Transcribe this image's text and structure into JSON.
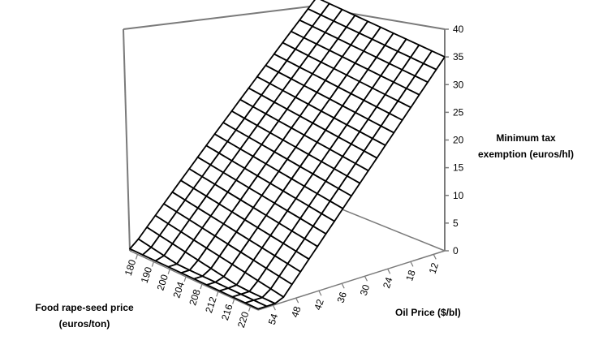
{
  "chart_data": {
    "type": "surface",
    "title": "",
    "z_axis": {
      "label_lines": [
        "Minimum tax",
        "exemption (euros/hl)"
      ],
      "range": [
        0,
        40
      ],
      "ticks": [
        0,
        5,
        10,
        15,
        20,
        25,
        30,
        35,
        40
      ]
    },
    "x_axis": {
      "label": "Oil Price ($/bl)",
      "tick_labels": [
        "12",
        "18",
        "24",
        "30",
        "36",
        "42",
        "48",
        "54"
      ],
      "range": [
        12,
        56
      ]
    },
    "y_axis": {
      "label_lines": [
        "Food rape-seed price",
        "(euros/ton)"
      ],
      "tick_labels": [
        "180",
        "190",
        "200",
        "204",
        "208",
        "212",
        "216",
        "220"
      ],
      "range": [
        180,
        220
      ]
    },
    "surface_description_values": {
      "max_value_at_low_oil_price": 35,
      "min_value_at_high_oil_price": 0
    },
    "grid": true
  }
}
